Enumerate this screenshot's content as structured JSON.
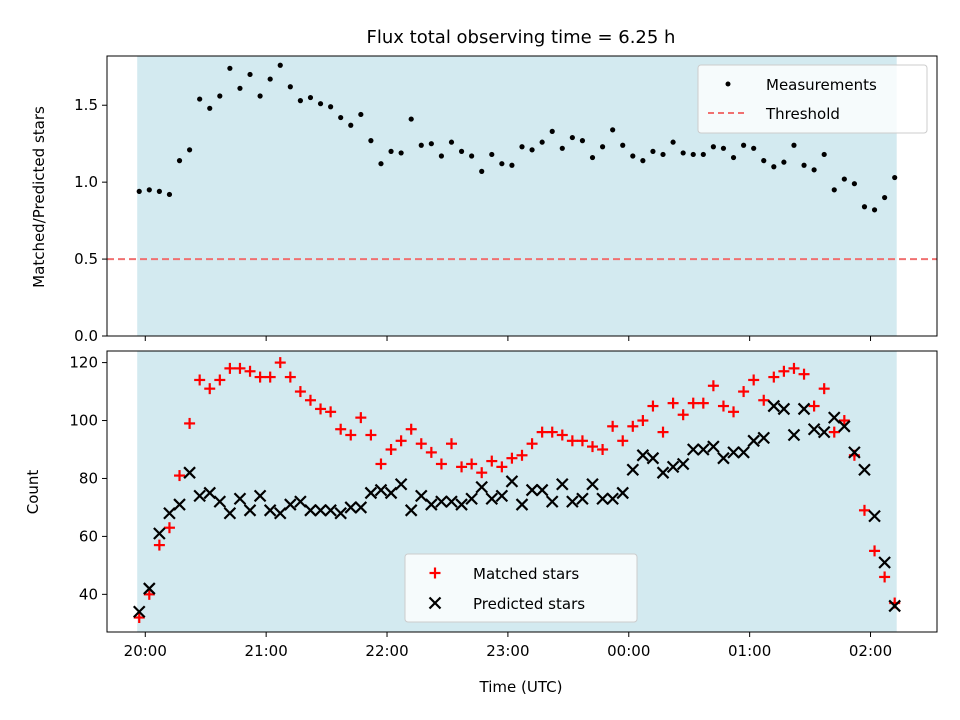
{
  "chart_data": [
    {
      "type": "scatter",
      "title": "Flux total observing time = 6.25 h",
      "ylabel": "Matched/Predicted stars",
      "xlabel": "",
      "ylim": [
        0,
        1.82
      ],
      "yticks": [
        "0.0",
        "0.5",
        "1.0",
        "1.5"
      ],
      "shaded_color": "#d3eaf0",
      "legend": {
        "location": "top-right",
        "entries": [
          "Measurements",
          "Threshold"
        ]
      },
      "threshold": {
        "name": "Threshold",
        "value": 0.5,
        "color": "#f07070",
        "style": "dashed"
      },
      "series": [
        {
          "name": "Measurements",
          "marker": "dot",
          "color": "#000000",
          "x": [
            "19:57",
            "20:02",
            "20:07",
            "20:12",
            "20:17",
            "20:22",
            "20:27",
            "20:32",
            "20:37",
            "20:42",
            "20:47",
            "20:52",
            "20:57",
            "21:02",
            "21:07",
            "21:12",
            "21:17",
            "21:22",
            "21:27",
            "21:32",
            "21:37",
            "21:42",
            "21:47",
            "21:52",
            "21:57",
            "22:02",
            "22:07",
            "22:12",
            "22:17",
            "22:22",
            "22:27",
            "22:32",
            "22:37",
            "22:42",
            "22:47",
            "22:52",
            "22:57",
            "23:02",
            "23:07",
            "23:12",
            "23:17",
            "23:22",
            "23:27",
            "23:32",
            "23:37",
            "23:42",
            "23:47",
            "23:52",
            "23:57",
            "00:02",
            "00:07",
            "00:12",
            "00:17",
            "00:22",
            "00:27",
            "00:32",
            "00:37",
            "00:42",
            "00:47",
            "00:52",
            "00:57",
            "01:02",
            "01:07",
            "01:12",
            "01:17",
            "01:22",
            "01:27",
            "01:32",
            "01:37",
            "01:42",
            "01:47",
            "01:52",
            "01:57",
            "02:02",
            "02:07",
            "02:12"
          ],
          "y": [
            0.94,
            0.95,
            0.94,
            0.92,
            1.14,
            1.21,
            1.54,
            1.48,
            1.56,
            1.74,
            1.61,
            1.7,
            1.56,
            1.67,
            1.76,
            1.62,
            1.53,
            1.55,
            1.51,
            1.49,
            1.42,
            1.37,
            1.44,
            1.27,
            1.12,
            1.2,
            1.19,
            1.41,
            1.24,
            1.25,
            1.17,
            1.26,
            1.2,
            1.17,
            1.07,
            1.18,
            1.12,
            1.11,
            1.23,
            1.21,
            1.26,
            1.33,
            1.22,
            1.29,
            1.27,
            1.16,
            1.23,
            1.34,
            1.24,
            1.17,
            1.14,
            1.2,
            1.18,
            1.26,
            1.19,
            1.18,
            1.18,
            1.23,
            1.22,
            1.16,
            1.24,
            1.22,
            1.14,
            1.1,
            1.13,
            1.24,
            1.11,
            1.08,
            1.18,
            0.95,
            1.02,
            0.99,
            0.84,
            0.82,
            0.9,
            1.03
          ]
        }
      ]
    },
    {
      "type": "scatter",
      "title": "",
      "ylabel": "Count",
      "xlabel": "Time (UTC)",
      "ylim": [
        27,
        124
      ],
      "yticks": [
        "40",
        "60",
        "80",
        "100",
        "120"
      ],
      "xticks": [
        "20:00",
        "21:00",
        "22:00",
        "23:00",
        "00:00",
        "01:00",
        "02:00"
      ],
      "shaded_color": "#d3eaf0",
      "legend": {
        "location": "lower-center",
        "entries": [
          "Matched stars",
          "Predicted stars"
        ]
      },
      "series": [
        {
          "name": "Matched stars",
          "marker": "plus",
          "color": "#ff0000",
          "x": [
            "19:57",
            "20:02",
            "20:07",
            "20:12",
            "20:17",
            "20:22",
            "20:27",
            "20:32",
            "20:37",
            "20:42",
            "20:47",
            "20:52",
            "20:57",
            "21:02",
            "21:07",
            "21:12",
            "21:17",
            "21:22",
            "21:27",
            "21:32",
            "21:37",
            "21:42",
            "21:47",
            "21:52",
            "21:57",
            "22:02",
            "22:07",
            "22:12",
            "22:17",
            "22:22",
            "22:27",
            "22:32",
            "22:37",
            "22:42",
            "22:47",
            "22:52",
            "22:57",
            "23:02",
            "23:07",
            "23:12",
            "23:17",
            "23:22",
            "23:27",
            "23:32",
            "23:37",
            "23:42",
            "23:47",
            "23:52",
            "23:57",
            "00:02",
            "00:07",
            "00:12",
            "00:17",
            "00:22",
            "00:27",
            "00:32",
            "00:37",
            "00:42",
            "00:47",
            "00:52",
            "00:57",
            "01:02",
            "01:07",
            "01:12",
            "01:17",
            "01:22",
            "01:27",
            "01:32",
            "01:37",
            "01:42",
            "01:47",
            "01:52",
            "01:57",
            "02:02",
            "02:07",
            "02:12"
          ],
          "y": [
            32,
            40,
            57,
            63,
            81,
            99,
            114,
            111,
            114,
            118,
            118,
            117,
            115,
            115,
            120,
            115,
            110,
            107,
            104,
            103,
            97,
            95,
            101,
            95,
            85,
            90,
            93,
            97,
            92,
            89,
            85,
            92,
            84,
            85,
            82,
            86,
            84,
            87,
            88,
            92,
            96,
            96,
            95,
            93,
            93,
            91,
            90,
            98,
            93,
            98,
            100,
            105,
            96,
            106,
            102,
            106,
            106,
            112,
            105,
            103,
            110,
            114,
            107,
            115,
            117,
            118,
            116,
            105,
            111,
            96,
            100,
            88,
            69,
            55,
            46,
            37
          ]
        },
        {
          "name": "Predicted stars",
          "marker": "x",
          "color": "#000000",
          "x": [
            "19:57",
            "20:02",
            "20:07",
            "20:12",
            "20:17",
            "20:22",
            "20:27",
            "20:32",
            "20:37",
            "20:42",
            "20:47",
            "20:52",
            "20:57",
            "21:02",
            "21:07",
            "21:12",
            "21:17",
            "21:22",
            "21:27",
            "21:32",
            "21:37",
            "21:42",
            "21:47",
            "21:52",
            "21:57",
            "22:02",
            "22:07",
            "22:12",
            "22:17",
            "22:22",
            "22:27",
            "22:32",
            "22:37",
            "22:42",
            "22:47",
            "22:52",
            "22:57",
            "23:02",
            "23:07",
            "23:12",
            "23:17",
            "23:22",
            "23:27",
            "23:32",
            "23:37",
            "23:42",
            "23:47",
            "23:52",
            "23:57",
            "00:02",
            "00:07",
            "00:12",
            "00:17",
            "00:22",
            "00:27",
            "00:32",
            "00:37",
            "00:42",
            "00:47",
            "00:52",
            "00:57",
            "01:02",
            "01:07",
            "01:12",
            "01:17",
            "01:22",
            "01:27",
            "01:32",
            "01:37",
            "01:42",
            "01:47",
            "01:52",
            "01:57",
            "02:02",
            "02:07",
            "02:12"
          ],
          "y": [
            34,
            42,
            61,
            68,
            71,
            82,
            74,
            75,
            72,
            68,
            73,
            69,
            74,
            69,
            68,
            71,
            72,
            69,
            69,
            69,
            68,
            70,
            70,
            75,
            76,
            75,
            78,
            69,
            74,
            71,
            72,
            72,
            71,
            73,
            77,
            73,
            74,
            79,
            71,
            76,
            76,
            72,
            78,
            72,
            73,
            78,
            73,
            73,
            75,
            83,
            88,
            87,
            82,
            84,
            85,
            90,
            90,
            91,
            87,
            89,
            89,
            93,
            94,
            105,
            104,
            95,
            104,
            97,
            96,
            101,
            98,
            89,
            83,
            67,
            51,
            36
          ]
        }
      ]
    }
  ]
}
